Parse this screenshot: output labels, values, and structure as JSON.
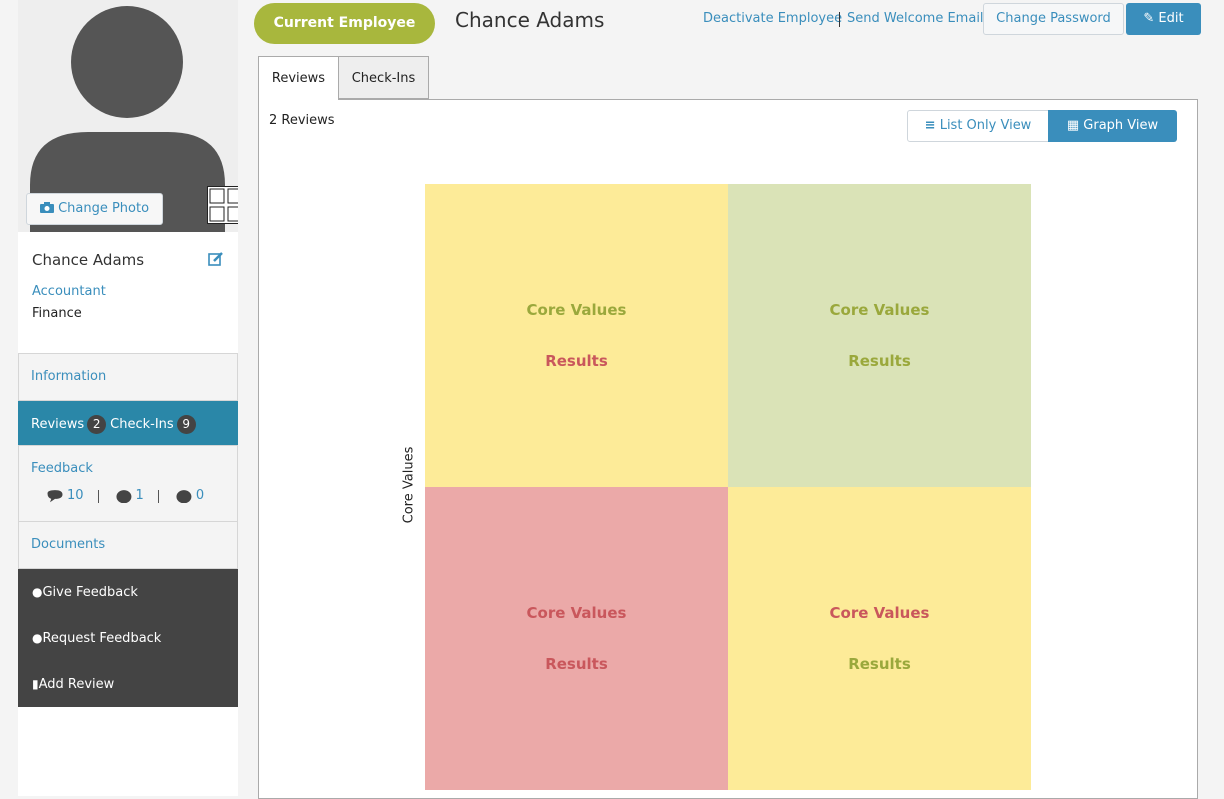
{
  "profile": {
    "change_photo": "Change Photo",
    "name": "Chance Adams",
    "job_title": "Accountant",
    "department": "Finance"
  },
  "nav": {
    "information": "Information",
    "reviews": {
      "label": "Reviews",
      "count": 2
    },
    "check_ins": {
      "label": "Check-Ins",
      "count": 9
    },
    "feedback": {
      "label": "Feedback",
      "counts": [
        10,
        1,
        0
      ]
    },
    "documents": "Documents"
  },
  "actions": [
    "Give Feedback",
    "Request Feedback",
    "Add Review"
  ],
  "header": {
    "status": "Current Employee",
    "name": "Chance Adams",
    "links": [
      "Deactivate Employee",
      "Send Welcome Email"
    ],
    "buttons": [
      "Change Password",
      "Edit"
    ]
  },
  "tabs": [
    "Reviews",
    "Check-Ins"
  ],
  "review_count": "2 Reviews",
  "view_toggle": [
    "List Only View",
    "Graph View"
  ],
  "grid": {
    "y_axis_label": "Core Values",
    "quadrants": [
      {
        "top": "Core Values",
        "bottom": "Results",
        "color": "#fdeb98",
        "top_color": "#9aa83c",
        "bottom_color": "#c9575c"
      },
      {
        "top": "Core Values",
        "bottom": "Results",
        "color": "#dae3b7",
        "top_color": "#9aa83c",
        "bottom_color": "#9aa83c"
      },
      {
        "top": "Core Values",
        "bottom": "Results",
        "color": "#eba9a8",
        "top_color": "#c9575c",
        "bottom_color": "#c9575c"
      },
      {
        "top": "Core Values",
        "bottom": "Results",
        "color": "#fdeb98",
        "top_color": "#c9575c",
        "bottom_color": "#9aa83c"
      }
    ]
  }
}
